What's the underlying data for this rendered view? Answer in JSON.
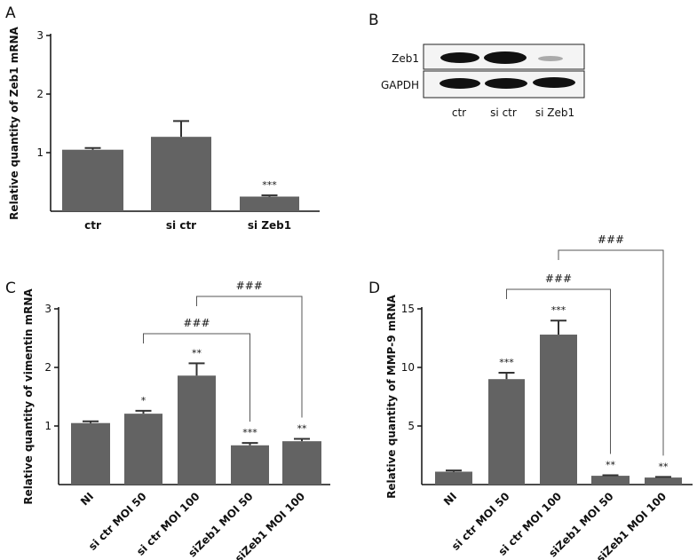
{
  "chart_data": [
    {
      "type": "bar",
      "panel": "A",
      "ylabel": "Relative quantity of Zeb1 mRNA",
      "categories": [
        "ctr",
        "si ctr",
        "si Zeb1"
      ],
      "values": [
        1.05,
        1.27,
        0.25
      ],
      "errors": [
        0.03,
        0.27,
        0.02
      ],
      "annotations": [
        null,
        null,
        "***"
      ],
      "color": "#636363",
      "ylim": [
        0,
        3
      ],
      "yticks": [
        1,
        2,
        3
      ]
    },
    {
      "type": "bar",
      "panel": "C",
      "ylabel": "Relative quantity of vimentin mRNA",
      "categories": [
        "NI",
        "si ctr MOI 50",
        "si ctr MOI 100",
        "siZeb1 MOI 50",
        "siZeb1 MOI 100"
      ],
      "values": [
        1.05,
        1.21,
        1.86,
        0.67,
        0.74
      ],
      "errors": [
        0.03,
        0.05,
        0.21,
        0.04,
        0.04
      ],
      "annotations": [
        null,
        "*",
        "**",
        "***",
        "**"
      ],
      "brackets": [
        {
          "from": 1,
          "to": 3,
          "label": "###"
        },
        {
          "from": 2,
          "to": 4,
          "label": "###"
        }
      ],
      "color": "#636363",
      "ylim": [
        0,
        3
      ],
      "yticks": [
        1,
        2,
        3
      ]
    },
    {
      "type": "bar",
      "panel": "D",
      "ylabel": "Relative quantity of MMP-9 mRNA",
      "categories": [
        "NI",
        "si ctr MOI 50",
        "si ctr MOI 100",
        "siZeb1 MOI 50",
        "siZeb1 MOI 100"
      ],
      "values": [
        1.1,
        9.0,
        12.8,
        0.75,
        0.6
      ],
      "errors": [
        0.1,
        0.55,
        1.2,
        0.05,
        0.05
      ],
      "annotations": [
        null,
        "***",
        "***",
        "**",
        "**"
      ],
      "brackets": [
        {
          "from": 1,
          "to": 3,
          "label": "###"
        },
        {
          "from": 2,
          "to": 4,
          "label": "###"
        }
      ],
      "color": "#636363",
      "ylim": [
        0,
        15
      ],
      "yticks": [
        5,
        10,
        15
      ]
    }
  ],
  "blot": {
    "panel": "B",
    "rows": [
      "Zeb1",
      "GAPDH"
    ],
    "lanes": [
      "ctr",
      "si ctr",
      "si Zeb1"
    ]
  }
}
